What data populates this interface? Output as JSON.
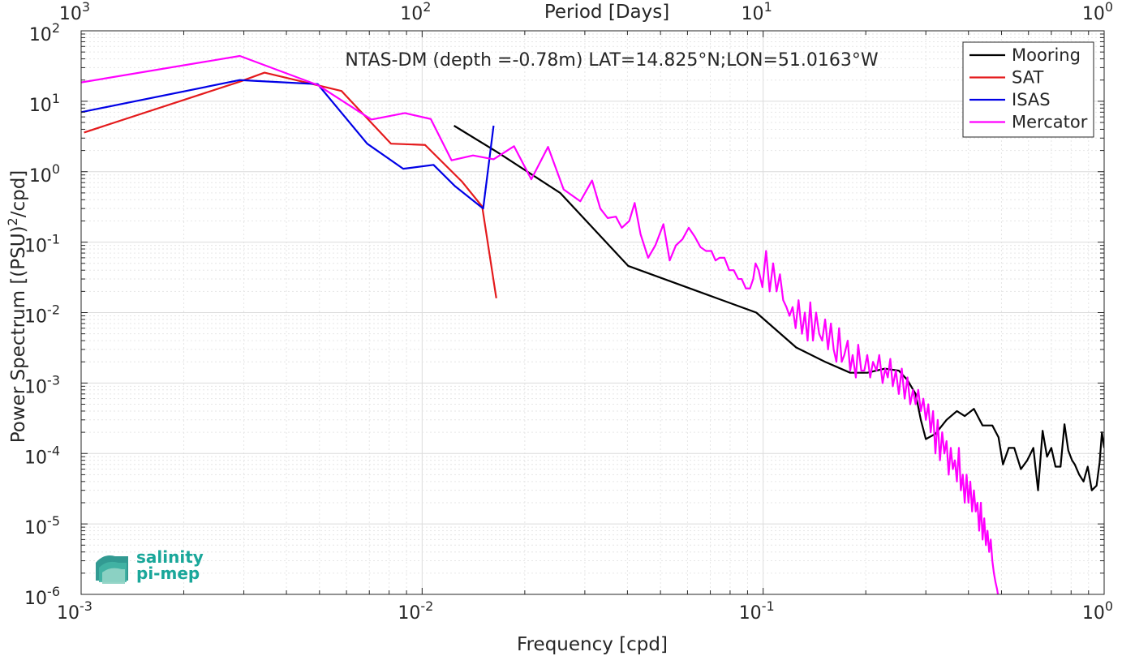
{
  "chart_data": {
    "type": "line",
    "title": "NTAS-DM (depth =-0.78m) LAT=14.825°N;LON=51.0163°W",
    "xlabel": "Frequency [cpd]",
    "ylabel_main": "Power Spectrum [(PSU)",
    "ylabel_sup": "2",
    "ylabel_tail": "/cpd]",
    "top_xlabel": "Period [Days]",
    "x_scale": "log",
    "y_scale": "log",
    "xlim": [
      0.001,
      1
    ],
    "ylim": [
      1e-06,
      100
    ],
    "grid": true,
    "legend_position": "top-right",
    "x_ticks": [
      {
        "v": 0.001,
        "base": "10",
        "exp": "-3"
      },
      {
        "v": 0.01,
        "base": "10",
        "exp": "-2"
      },
      {
        "v": 0.1,
        "base": "10",
        "exp": "-1"
      },
      {
        "v": 1,
        "base": "10",
        "exp": "0"
      }
    ],
    "y_ticks": [
      {
        "v": 1e-06,
        "base": "10",
        "exp": "-6"
      },
      {
        "v": 1e-05,
        "base": "10",
        "exp": "-5"
      },
      {
        "v": 0.0001,
        "base": "10",
        "exp": "-4"
      },
      {
        "v": 0.001,
        "base": "10",
        "exp": "-3"
      },
      {
        "v": 0.01,
        "base": "10",
        "exp": "-2"
      },
      {
        "v": 0.1,
        "base": "10",
        "exp": "-1"
      },
      {
        "v": 1,
        "base": "10",
        "exp": "0"
      },
      {
        "v": 10,
        "base": "10",
        "exp": "1"
      },
      {
        "v": 100,
        "base": "10",
        "exp": "2"
      }
    ],
    "top_ticks": [
      {
        "v": 0.001,
        "base": "10",
        "exp": "3"
      },
      {
        "v": 0.01,
        "base": "10",
        "exp": "2"
      },
      {
        "v": 0.1,
        "base": "10",
        "exp": "1"
      },
      {
        "v": 1,
        "base": "10",
        "exp": "0"
      }
    ],
    "series": [
      {
        "name": "Mooring",
        "color": "#000000",
        "points": [
          [
            0.0124,
            4.5
          ],
          [
            0.0166,
            1.9
          ],
          [
            0.0254,
            0.5
          ],
          [
            0.0402,
            0.046
          ],
          [
            0.0684,
            0.018
          ],
          [
            0.0955,
            0.01
          ],
          [
            0.125,
            0.0032
          ],
          [
            0.152,
            0.002
          ],
          [
            0.18,
            0.0014
          ],
          [
            0.202,
            0.0014
          ],
          [
            0.227,
            0.0016
          ],
          [
            0.25,
            0.0015
          ],
          [
            0.265,
            0.0011
          ],
          [
            0.28,
            0.0007
          ],
          [
            0.29,
            0.0003
          ],
          [
            0.3,
            0.00016
          ],
          [
            0.32,
            0.00019
          ],
          [
            0.345,
            0.0003
          ],
          [
            0.37,
            0.0004
          ],
          [
            0.39,
            0.00034
          ],
          [
            0.415,
            0.00043
          ],
          [
            0.44,
            0.00025
          ],
          [
            0.47,
            0.00025
          ],
          [
            0.49,
            0.00017
          ],
          [
            0.505,
            7e-05
          ],
          [
            0.525,
            0.00012
          ],
          [
            0.545,
            0.00012
          ],
          [
            0.57,
            6e-05
          ],
          [
            0.595,
            8e-05
          ],
          [
            0.62,
            0.00012
          ],
          [
            0.64,
            3e-05
          ],
          [
            0.66,
            0.00021
          ],
          [
            0.68,
            9e-05
          ],
          [
            0.7,
            0.00012
          ],
          [
            0.72,
            6.5e-05
          ],
          [
            0.745,
            6.5e-05
          ],
          [
            0.765,
            0.00026
          ],
          [
            0.785,
            0.00011
          ],
          [
            0.805,
            8e-05
          ],
          [
            0.82,
            7e-05
          ],
          [
            0.845,
            5e-05
          ],
          [
            0.87,
            4e-05
          ],
          [
            0.895,
            6.5e-05
          ],
          [
            0.92,
            3e-05
          ],
          [
            0.95,
            3.5e-05
          ],
          [
            0.97,
            7.5e-05
          ],
          [
            0.985,
            0.0002
          ],
          [
            1.0,
            0.00012
          ]
        ]
      },
      {
        "name": "SAT",
        "color": "#e41a1c",
        "points": [
          [
            0.00102,
            3.6
          ],
          [
            0.00292,
            19
          ],
          [
            0.00345,
            25.5
          ],
          [
            0.0058,
            14
          ],
          [
            0.0081,
            2.5
          ],
          [
            0.0102,
            2.4
          ],
          [
            0.0131,
            0.72
          ],
          [
            0.015,
            0.32
          ],
          [
            0.0165,
            0.016
          ]
        ]
      },
      {
        "name": "ISAS",
        "color": "#0000e6",
        "points": [
          [
            0.001,
            7
          ],
          [
            0.00292,
            20
          ],
          [
            0.00494,
            17.5
          ],
          [
            0.0069,
            2.5
          ],
          [
            0.0088,
            1.1
          ],
          [
            0.0108,
            1.25
          ],
          [
            0.0125,
            0.62
          ],
          [
            0.0151,
            0.3
          ],
          [
            0.0162,
            4.5
          ]
        ]
      },
      {
        "name": "Mercator",
        "color": "#ff00ff",
        "points": [
          [
            0.001,
            18.5
          ],
          [
            0.00292,
            44
          ],
          [
            0.00494,
            17
          ],
          [
            0.0071,
            5.5
          ],
          [
            0.0089,
            6.8
          ],
          [
            0.0106,
            5.6
          ],
          [
            0.0122,
            1.45
          ],
          [
            0.0141,
            1.7
          ],
          [
            0.0162,
            1.5
          ],
          [
            0.0186,
            2.3
          ],
          [
            0.0209,
            0.78
          ],
          [
            0.0234,
            2.25
          ],
          [
            0.026,
            0.56
          ],
          [
            0.0291,
            0.38
          ],
          [
            0.0315,
            0.75
          ],
          [
            0.0333,
            0.3
          ],
          [
            0.035,
            0.22
          ],
          [
            0.037,
            0.23
          ],
          [
            0.0385,
            0.16
          ],
          [
            0.0405,
            0.2
          ],
          [
            0.042,
            0.36
          ],
          [
            0.0437,
            0.13
          ],
          [
            0.046,
            0.06
          ],
          [
            0.0483,
            0.09
          ],
          [
            0.051,
            0.18
          ],
          [
            0.0532,
            0.055
          ],
          [
            0.0555,
            0.09
          ],
          [
            0.058,
            0.11
          ],
          [
            0.0605,
            0.16
          ],
          [
            0.063,
            0.12
          ],
          [
            0.0655,
            0.085
          ],
          [
            0.068,
            0.075
          ],
          [
            0.0705,
            0.075
          ],
          [
            0.0725,
            0.055
          ],
          [
            0.0745,
            0.06
          ],
          [
            0.077,
            0.06
          ],
          [
            0.0795,
            0.04
          ],
          [
            0.082,
            0.04
          ],
          [
            0.0845,
            0.03
          ],
          [
            0.0865,
            0.03
          ],
          [
            0.089,
            0.022
          ],
          [
            0.0915,
            0.022
          ],
          [
            0.0935,
            0.03
          ],
          [
            0.095,
            0.05
          ],
          [
            0.097,
            0.04
          ],
          [
            0.0995,
            0.023
          ],
          [
            0.102,
            0.075
          ],
          [
            0.1045,
            0.02
          ],
          [
            0.107,
            0.05
          ],
          [
            0.1095,
            0.02
          ],
          [
            0.112,
            0.035
          ],
          [
            0.1145,
            0.015
          ],
          [
            0.117,
            0.012
          ],
          [
            0.1195,
            0.009
          ],
          [
            0.122,
            0.012
          ],
          [
            0.1245,
            0.006
          ],
          [
            0.127,
            0.015
          ],
          [
            0.13,
            0.005
          ],
          [
            0.1325,
            0.01
          ],
          [
            0.135,
            0.004
          ],
          [
            0.1375,
            0.014
          ],
          [
            0.14,
            0.004
          ],
          [
            0.143,
            0.01
          ],
          [
            0.146,
            0.005
          ],
          [
            0.149,
            0.004
          ],
          [
            0.152,
            0.008
          ],
          [
            0.155,
            0.003
          ],
          [
            0.158,
            0.007
          ],
          [
            0.161,
            0.003
          ],
          [
            0.164,
            0.002
          ],
          [
            0.167,
            0.006
          ],
          [
            0.17,
            0.002
          ],
          [
            0.173,
            0.0025
          ],
          [
            0.177,
            0.004
          ],
          [
            0.18,
            0.0015
          ],
          [
            0.183,
            0.0025
          ],
          [
            0.187,
            0.0012
          ],
          [
            0.19,
            0.0035
          ],
          [
            0.194,
            0.0015
          ],
          [
            0.198,
            0.0015
          ],
          [
            0.202,
            0.0025
          ],
          [
            0.206,
            0.0012
          ],
          [
            0.21,
            0.002
          ],
          [
            0.215,
            0.0015
          ],
          [
            0.219,
            0.0025
          ],
          [
            0.224,
            0.001
          ],
          [
            0.228,
            0.0016
          ],
          [
            0.232,
            0.0012
          ],
          [
            0.236,
            0.0022
          ],
          [
            0.24,
            0.0009
          ],
          [
            0.245,
            0.0015
          ],
          [
            0.25,
            0.0007
          ],
          [
            0.255,
            0.0016
          ],
          [
            0.26,
            0.0006
          ],
          [
            0.265,
            0.0012
          ],
          [
            0.27,
            0.0005
          ],
          [
            0.275,
            0.0008
          ],
          [
            0.28,
            0.0005
          ],
          [
            0.285,
            0.0008
          ],
          [
            0.29,
            0.0004
          ],
          [
            0.295,
            0.0006
          ],
          [
            0.3,
            0.0003
          ],
          [
            0.305,
            0.0005
          ],
          [
            0.31,
            0.0002
          ],
          [
            0.315,
            0.0004
          ],
          [
            0.32,
            0.0001
          ],
          [
            0.325,
            0.0003
          ],
          [
            0.33,
            8e-05
          ],
          [
            0.335,
            0.0002
          ],
          [
            0.34,
            0.0001
          ],
          [
            0.345,
            0.00015
          ],
          [
            0.35,
            5e-05
          ],
          [
            0.355,
            0.00012
          ],
          [
            0.36,
            6e-05
          ],
          [
            0.365,
            8e-05
          ],
          [
            0.37,
            4e-05
          ],
          [
            0.375,
            0.00012
          ],
          [
            0.38,
            3e-05
          ],
          [
            0.385,
            5e-05
          ],
          [
            0.39,
            2e-05
          ],
          [
            0.395,
            5e-05
          ],
          [
            0.4,
            2e-05
          ],
          [
            0.405,
            4e-05
          ],
          [
            0.41,
            1.5e-05
          ],
          [
            0.415,
            3e-05
          ],
          [
            0.42,
            1.5e-05
          ],
          [
            0.425,
            2e-05
          ],
          [
            0.43,
            8e-06
          ],
          [
            0.435,
            2e-05
          ],
          [
            0.44,
            6e-06
          ],
          [
            0.445,
            1.2e-05
          ],
          [
            0.45,
            5e-06
          ],
          [
            0.455,
            8e-06
          ],
          [
            0.46,
            4e-06
          ],
          [
            0.465,
            6e-06
          ],
          [
            0.47,
            3e-06
          ],
          [
            0.475,
            2e-06
          ],
          [
            0.48,
            1.5e-06
          ],
          [
            0.485,
            1.2e-06
          ],
          [
            0.49,
            9e-07
          ]
        ]
      }
    ]
  },
  "logo": {
    "line1": "salinity",
    "line2": "pi-mep",
    "color": "#1aa79a",
    "icon": "salinity-waves-logo-icon"
  }
}
